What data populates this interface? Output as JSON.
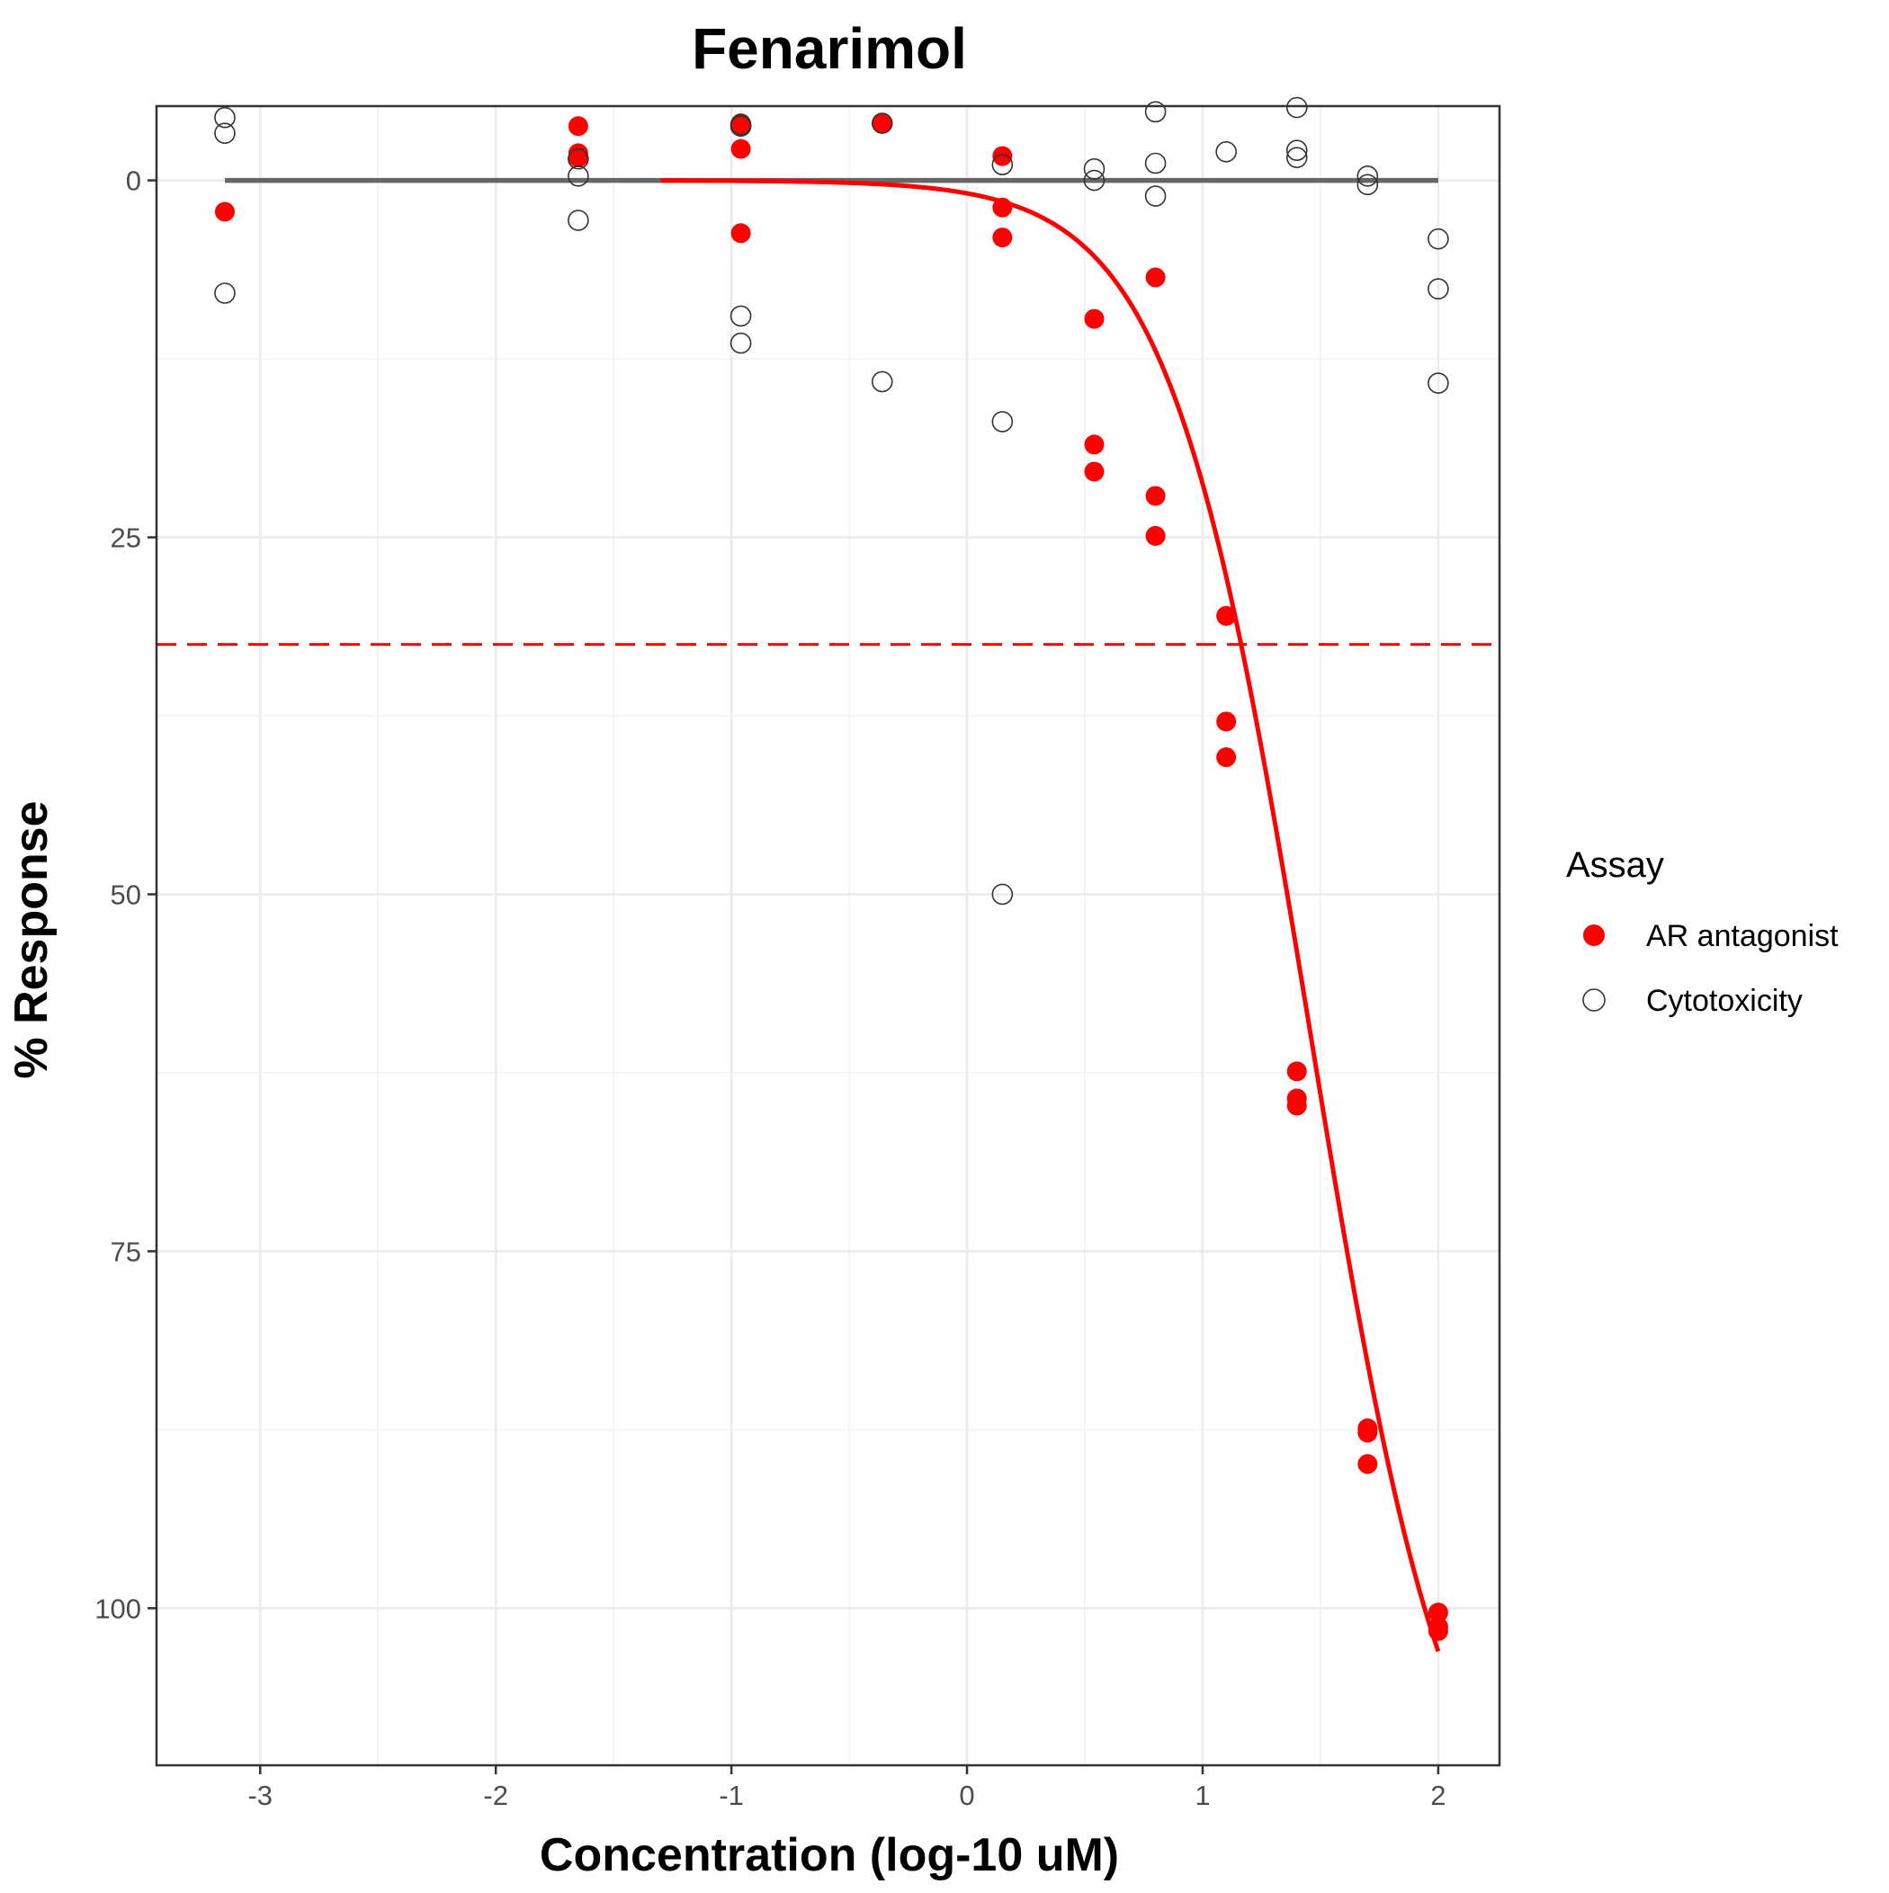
{
  "chart_data": {
    "type": "scatter",
    "title": "Fenarimol",
    "xlabel": "Concentration (log-10 uM)",
    "ylabel": "% Response",
    "xlim": [
      -3.44,
      2.26
    ],
    "ylim": [
      -5.2,
      111.0
    ],
    "y_reversed": true,
    "x_ticks": [
      -3,
      -2,
      -1,
      0,
      1,
      2
    ],
    "x_tick_labels": [
      "-3",
      "-2",
      "-1",
      "0",
      "1",
      "2"
    ],
    "y_ticks": [
      0,
      25,
      50,
      75,
      100
    ],
    "y_tick_labels": [
      "0",
      "25",
      "50",
      "75",
      "100"
    ],
    "grid": true,
    "legend": {
      "title": "Assay",
      "placement": "right",
      "entries": [
        "AR antagonist",
        "Cytotoxicity"
      ]
    },
    "series": [
      {
        "name": "AR antagonist",
        "marker": "filled-circle",
        "color": "#ff0000",
        "points": [
          [
            -3.15,
            2.2
          ],
          [
            -1.65,
            -3.8
          ],
          [
            -1.65,
            -1.9
          ],
          [
            -1.65,
            -1.6
          ],
          [
            -0.96,
            -3.9
          ],
          [
            -0.96,
            -4.0
          ],
          [
            -0.96,
            -2.2
          ],
          [
            -0.96,
            3.7
          ],
          [
            -0.36,
            -4.0
          ],
          [
            0.15,
            -1.7
          ],
          [
            0.15,
            1.9
          ],
          [
            0.15,
            4.0
          ],
          [
            0.54,
            9.7
          ],
          [
            0.54,
            18.5
          ],
          [
            0.54,
            20.4
          ],
          [
            0.8,
            6.8
          ],
          [
            0.8,
            22.1
          ],
          [
            0.8,
            24.9
          ],
          [
            1.1,
            30.5
          ],
          [
            1.1,
            37.9
          ],
          [
            1.1,
            40.4
          ],
          [
            1.4,
            62.4
          ],
          [
            1.4,
            64.3
          ],
          [
            1.4,
            64.8
          ],
          [
            1.7,
            87.4
          ],
          [
            1.7,
            87.7
          ],
          [
            1.7,
            89.9
          ],
          [
            2.0,
            100.3
          ],
          [
            2.0,
            101.3
          ],
          [
            2.0,
            101.6
          ]
        ]
      },
      {
        "name": "Cytotoxicity",
        "marker": "open-circle",
        "color": "#333333",
        "points": [
          [
            -3.15,
            -4.4
          ],
          [
            -3.15,
            -3.3
          ],
          [
            -3.15,
            7.9
          ],
          [
            -1.65,
            -1.5
          ],
          [
            -1.65,
            -0.3
          ],
          [
            -1.65,
            2.8
          ],
          [
            -0.96,
            -3.8
          ],
          [
            -0.96,
            -3.9
          ],
          [
            -0.96,
            9.5
          ],
          [
            -0.96,
            11.4
          ],
          [
            -0.36,
            -4.0
          ],
          [
            -0.36,
            14.1
          ],
          [
            0.15,
            -1.1
          ],
          [
            0.15,
            16.9
          ],
          [
            0.15,
            50.0
          ],
          [
            0.54,
            -0.8
          ],
          [
            0.54,
            0.0
          ],
          [
            0.8,
            -4.8
          ],
          [
            0.8,
            -1.2
          ],
          [
            0.8,
            1.1
          ],
          [
            1.1,
            -2.0
          ],
          [
            1.4,
            -5.1
          ],
          [
            1.4,
            -2.1
          ],
          [
            1.4,
            -1.6
          ],
          [
            1.7,
            -0.3
          ],
          [
            1.7,
            0.3
          ],
          [
            2.0,
            4.1
          ],
          [
            2.0,
            7.6
          ],
          [
            2.0,
            14.2
          ]
        ]
      }
    ],
    "reference_lines": [
      {
        "type": "horizontal-segment",
        "y": 0,
        "x_range": [
          -3.15,
          2.0
        ],
        "color": "#666666",
        "style": "solid"
      },
      {
        "type": "horizontal-line",
        "y": 32.5,
        "color": "#ff0000",
        "style": "dashed"
      }
    ],
    "fit_curve": {
      "series": "AR antagonist",
      "color": "#ff0000",
      "model": "hill",
      "top": 120,
      "ac50_log": 1.46,
      "hill_slope": 1.45,
      "x_range": [
        -1.3,
        2.0
      ]
    }
  }
}
